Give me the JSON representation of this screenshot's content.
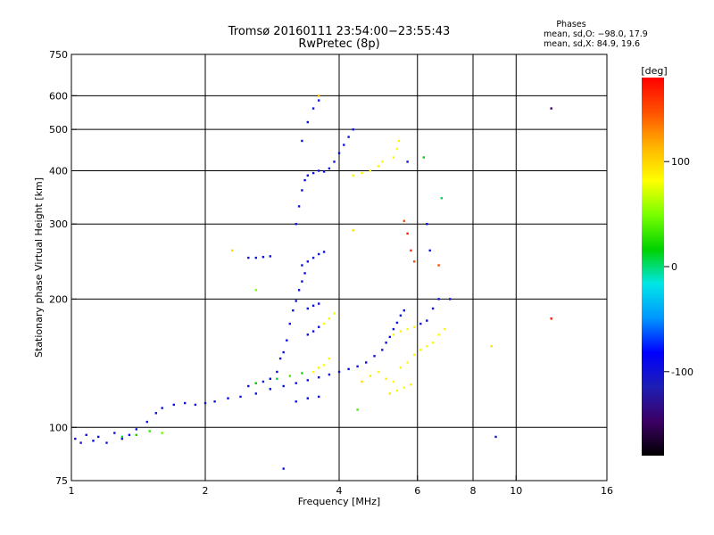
{
  "chart_data": {
    "type": "scatter",
    "title": "Tromsø 20160111 23:54:00−23:55:43",
    "subtitle": "RwPretec (8p)",
    "xlabel": "Frequency [MHz]",
    "ylabel": "Stationary phase Virtual Height [km]",
    "x_scale": "log",
    "y_scale": "log",
    "xlim": [
      1,
      16
    ],
    "ylim": [
      75,
      750
    ],
    "x_ticks": [
      1,
      2,
      4,
      6,
      8,
      10,
      16
    ],
    "y_ticks": [
      75,
      100,
      200,
      300,
      400,
      500,
      600,
      750
    ],
    "x_gridlines": [
      2,
      4,
      6,
      8,
      10
    ],
    "y_gridlines": [
      100,
      200,
      300,
      400,
      500,
      600
    ],
    "grid": true,
    "stats": {
      "heading": "Phases",
      "line_o": "mean, sd,O: −98.0, 17.9",
      "line_x": "mean, sd,X:  84.9, 19.6"
    },
    "colorbar": {
      "label": "[deg]",
      "range": [
        -180,
        180
      ],
      "ticks": [
        -100,
        0,
        100
      ],
      "colormap": [
        "#000000",
        "#3c0064",
        "#1e1eb4",
        "#0000ff",
        "#0096ff",
        "#00e6e6",
        "#00d200",
        "#78ff00",
        "#ffff00",
        "#ffb400",
        "#ff5000",
        "#ff0000"
      ]
    },
    "series": [
      {
        "values": [
          [
            1.02,
            94,
            -98
          ],
          [
            1.05,
            92,
            -102
          ],
          [
            1.08,
            96,
            -95
          ],
          [
            1.12,
            93,
            -90
          ],
          [
            1.15,
            95,
            -100
          ],
          [
            1.2,
            92,
            -105
          ],
          [
            1.25,
            97,
            -96
          ],
          [
            1.3,
            94,
            -92
          ],
          [
            1.35,
            96,
            -88
          ],
          [
            1.4,
            99,
            -98
          ],
          [
            1.48,
            103,
            -95
          ],
          [
            1.55,
            108,
            -100
          ],
          [
            1.6,
            111,
            -97
          ],
          [
            1.7,
            113,
            -93
          ],
          [
            1.8,
            114,
            -99
          ],
          [
            1.9,
            113,
            -95
          ],
          [
            2.0,
            114,
            -101
          ],
          [
            2.1,
            115,
            -98
          ],
          [
            2.25,
            117,
            -92
          ],
          [
            2.4,
            118,
            -96
          ],
          [
            2.6,
            120,
            -100
          ],
          [
            2.8,
            123,
            -95
          ],
          [
            3.0,
            125,
            -97
          ],
          [
            3.2,
            127,
            -98
          ],
          [
            3.4,
            129,
            -94
          ],
          [
            3.6,
            131,
            -99
          ],
          [
            3.8,
            133,
            -96
          ],
          [
            4.0,
            135,
            -100
          ],
          [
            4.2,
            137,
            -95
          ],
          [
            4.4,
            139,
            -98
          ],
          [
            4.6,
            142,
            -93
          ],
          [
            4.8,
            147,
            -97
          ],
          [
            5.0,
            152,
            -101
          ],
          [
            5.1,
            158,
            -96
          ],
          [
            5.2,
            163,
            -94
          ],
          [
            5.3,
            170,
            -98
          ],
          [
            5.4,
            176,
            -95
          ],
          [
            5.5,
            183,
            -100
          ],
          [
            5.6,
            188,
            -93
          ],
          [
            2.5,
            125,
            -96
          ],
          [
            2.6,
            127,
            -90
          ],
          [
            2.7,
            128,
            -98
          ],
          [
            2.8,
            130,
            -95
          ],
          [
            2.9,
            135,
            -92
          ],
          [
            2.95,
            145,
            -99
          ],
          [
            3.0,
            150,
            -96
          ],
          [
            3.05,
            160,
            -94
          ],
          [
            3.1,
            175,
            -97
          ],
          [
            3.15,
            188,
            -95
          ],
          [
            3.2,
            198,
            -99
          ],
          [
            3.25,
            210,
            -96
          ],
          [
            3.3,
            220,
            -98
          ],
          [
            3.35,
            230,
            -95
          ],
          [
            3.4,
            165,
            -100
          ],
          [
            3.5,
            168,
            -96
          ],
          [
            3.6,
            172,
            -92
          ],
          [
            3.4,
            190,
            -99
          ],
          [
            3.5,
            193,
            -97
          ],
          [
            3.6,
            195,
            -95
          ],
          [
            3.3,
            240,
            -98
          ],
          [
            3.4,
            245,
            -96
          ],
          [
            3.5,
            250,
            -94
          ],
          [
            3.6,
            255,
            -99
          ],
          [
            3.7,
            258,
            -97
          ],
          [
            3.2,
            300,
            -99
          ],
          [
            3.25,
            330,
            -96
          ],
          [
            3.3,
            360,
            -98
          ],
          [
            3.35,
            380,
            -95
          ],
          [
            3.4,
            390,
            -97
          ],
          [
            3.5,
            395,
            -94
          ],
          [
            3.6,
            400,
            -99
          ],
          [
            3.7,
            398,
            -96
          ],
          [
            3.8,
            405,
            -98
          ],
          [
            3.9,
            420,
            -95
          ],
          [
            4.0,
            440,
            -97
          ],
          [
            4.1,
            460,
            -99
          ],
          [
            4.2,
            480,
            -96
          ],
          [
            4.3,
            500,
            -98
          ],
          [
            3.3,
            470,
            -99
          ],
          [
            3.4,
            520,
            -96
          ],
          [
            3.5,
            560,
            -98
          ],
          [
            3.6,
            585,
            -95
          ],
          [
            2.5,
            250,
            -100
          ],
          [
            2.6,
            250,
            -97
          ],
          [
            2.7,
            251,
            -95
          ],
          [
            2.8,
            252,
            -98
          ],
          [
            5.7,
            420,
            -97
          ],
          [
            6.1,
            175,
            -98
          ],
          [
            6.3,
            178,
            -95
          ],
          [
            6.5,
            190,
            -99
          ],
          [
            6.7,
            200,
            -96
          ],
          [
            4.5,
            128,
            95
          ],
          [
            4.7,
            132,
            90
          ],
          [
            4.9,
            135,
            85
          ],
          [
            5.1,
            130,
            88
          ],
          [
            5.3,
            128,
            82
          ],
          [
            5.5,
            138,
            86
          ],
          [
            5.7,
            142,
            80
          ],
          [
            5.9,
            148,
            84
          ],
          [
            6.1,
            152,
            78
          ],
          [
            6.3,
            155,
            82
          ],
          [
            6.5,
            158,
            86
          ],
          [
            6.7,
            165,
            80
          ],
          [
            6.9,
            170,
            84
          ],
          [
            5.3,
            165,
            85
          ],
          [
            5.5,
            168,
            88
          ],
          [
            5.7,
            170,
            80
          ],
          [
            5.9,
            172,
            84
          ],
          [
            5.2,
            120,
            90
          ],
          [
            5.4,
            122,
            86
          ],
          [
            5.6,
            124,
            82
          ],
          [
            5.8,
            126,
            88
          ],
          [
            4.3,
            390,
            88
          ],
          [
            4.5,
            395,
            84
          ],
          [
            4.7,
            400,
            80
          ],
          [
            4.9,
            410,
            86
          ],
          [
            5.0,
            420,
            82
          ],
          [
            5.3,
            430,
            84
          ],
          [
            5.4,
            450,
            80
          ],
          [
            5.45,
            470,
            86
          ],
          [
            3.5,
            135,
            85
          ],
          [
            3.6,
            138,
            88
          ],
          [
            3.7,
            140,
            82
          ],
          [
            3.8,
            145,
            86
          ],
          [
            3.7,
            175,
            84
          ],
          [
            3.8,
            180,
            88
          ],
          [
            3.9,
            185,
            80
          ],
          [
            3.2,
            115,
            -95
          ],
          [
            3.4,
            117,
            -92
          ],
          [
            3.6,
            118,
            -98
          ],
          [
            1.5,
            98,
            30
          ],
          [
            1.6,
            97,
            45
          ],
          [
            1.4,
            96,
            20
          ],
          [
            1.3,
            95,
            10
          ],
          [
            2.6,
            127,
            20
          ],
          [
            2.9,
            130,
            10
          ],
          [
            3.1,
            132,
            35
          ],
          [
            3.3,
            134,
            20
          ],
          [
            12,
            560,
            -150
          ],
          [
            12,
            180,
            170
          ],
          [
            8.8,
            155,
            95
          ],
          [
            9,
            95,
            -110
          ],
          [
            7.1,
            200,
            -95
          ],
          [
            6.2,
            430,
            15
          ],
          [
            6.8,
            345,
            5
          ],
          [
            2.3,
            260,
            100
          ],
          [
            2.6,
            210,
            50
          ],
          [
            3.0,
            80,
            -100
          ],
          [
            4.3,
            290,
            95
          ],
          [
            3.6,
            600,
            110
          ],
          [
            4.4,
            110,
            35
          ],
          [
            5.6,
            305,
            150
          ],
          [
            5.7,
            285,
            170
          ],
          [
            5.8,
            260,
            160
          ],
          [
            5.9,
            245,
            150
          ],
          [
            6.4,
            260,
            -95
          ],
          [
            6.7,
            240,
            150
          ],
          [
            6.3,
            300,
            -90
          ]
        ]
      }
    ]
  }
}
